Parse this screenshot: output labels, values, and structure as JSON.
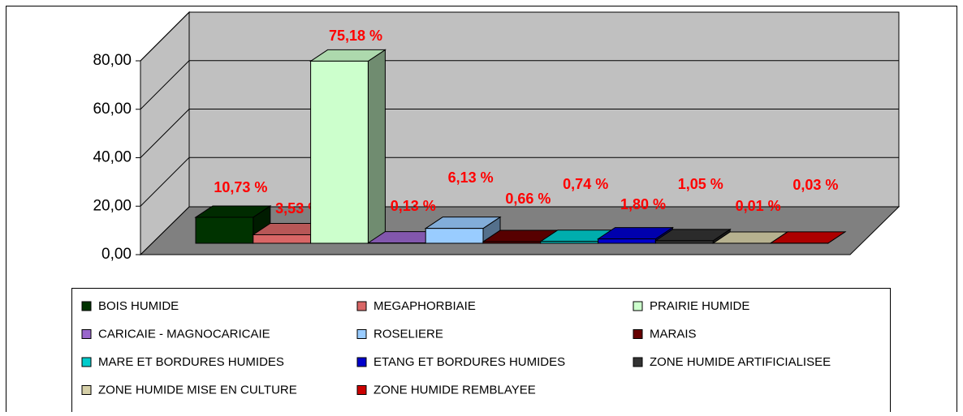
{
  "chart_data": {
    "type": "bar3d",
    "categories": [
      "BOIS HUMIDE",
      "MEGAPHORBIAIE",
      "PRAIRIE HUMIDE",
      "CARICAIE - MAGNOCARICAIE",
      "ROSELIERE",
      "MARAIS",
      "MARE ET BORDURES HUMIDES",
      "ETANG ET BORDURES HUMIDES",
      "ZONE HUMIDE ARTIFICIALISEE",
      "ZONE HUMIDE MISE EN CULTURE",
      "ZONE HUMIDE REMBLAYEE"
    ],
    "values": [
      10.73,
      3.53,
      75.18,
      0.13,
      6.13,
      0.66,
      0.74,
      1.8,
      1.05,
      0.01,
      0.03
    ],
    "value_labels": [
      "10,73 %",
      "3,53 %",
      "75,18 %",
      "0,13 %",
      "6,13 %",
      "0,66 %",
      "0,74 %",
      "1,80 %",
      "1,05 %",
      "0,01 %",
      "0,03 %"
    ],
    "colors": [
      "#003300",
      "#d96666",
      "#ccffcc",
      "#9966cc",
      "#99ccff",
      "#660000",
      "#00cccc",
      "#0000cc",
      "#333333",
      "#d6d0a8",
      "#cc0000"
    ],
    "ylim": [
      0,
      80
    ],
    "yticks": [
      {
        "value": 0,
        "label": "0,00"
      },
      {
        "value": 20,
        "label": "20,00"
      },
      {
        "value": 40,
        "label": "40,00"
      },
      {
        "value": 60,
        "label": "60,00"
      },
      {
        "value": 80,
        "label": "80,00"
      }
    ],
    "grid": true,
    "legend": "bottom"
  }
}
